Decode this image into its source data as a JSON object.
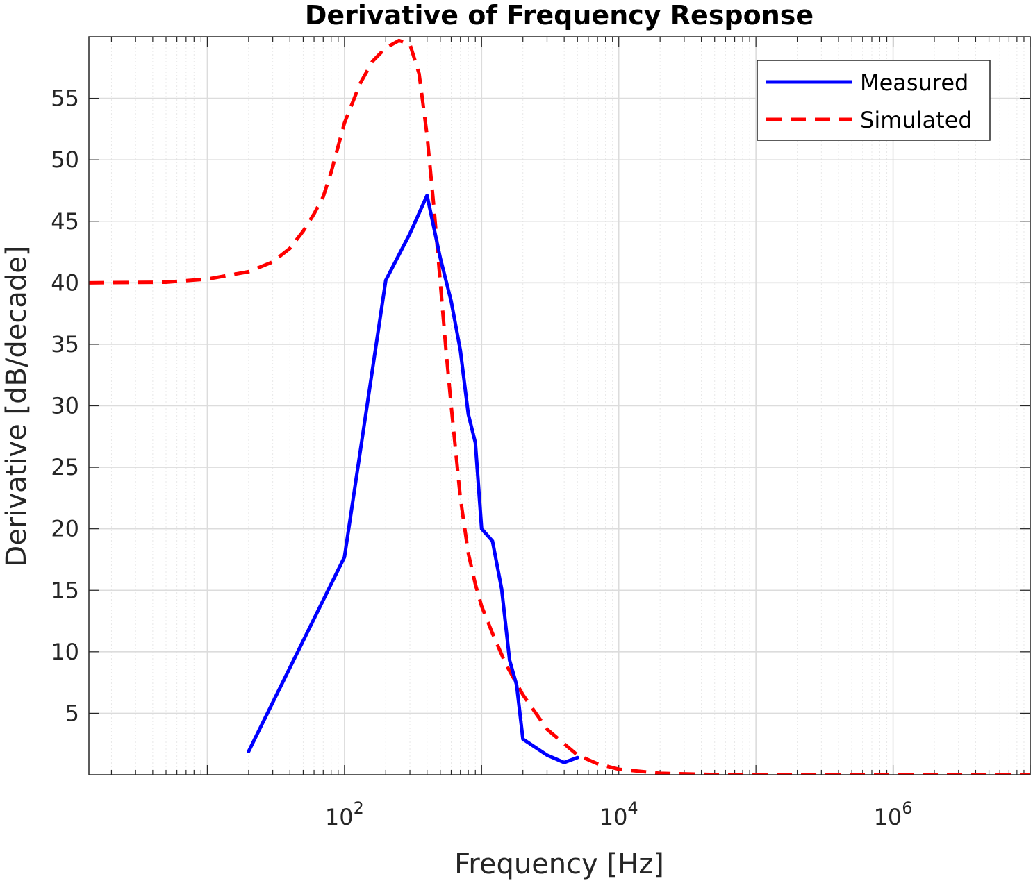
{
  "chart_data": {
    "type": "line",
    "title": "Derivative of Frequency Response",
    "xlabel": "Frequency [Hz]",
    "ylabel": "Derivative [dB/decade]",
    "xscale": "log",
    "xlim": [
      1.37,
      10000000
    ],
    "ylim": [
      0,
      60
    ],
    "grid": true,
    "minor_grid": true,
    "legend_position": "top-right",
    "x_tick_labels": [
      {
        "value": 100,
        "base": "10",
        "exp": "2"
      },
      {
        "value": 10000,
        "base": "10",
        "exp": "4"
      },
      {
        "value": 1000000,
        "base": "10",
        "exp": "6"
      }
    ],
    "y_ticks": [
      5,
      10,
      15,
      20,
      25,
      30,
      35,
      40,
      45,
      50,
      55
    ],
    "series": [
      {
        "name": "Measured",
        "color": "#0000ff",
        "style": "solid",
        "points": [
          [
            20,
            1.9
          ],
          [
            100,
            17.7
          ],
          [
            200,
            40.2
          ],
          [
            300,
            44.0
          ],
          [
            400,
            47.1
          ],
          [
            500,
            42.0
          ],
          [
            600,
            38.5
          ],
          [
            700,
            34.5
          ],
          [
            800,
            29.3
          ],
          [
            900,
            27.0
          ],
          [
            1000,
            20.0
          ],
          [
            1200,
            19.0
          ],
          [
            1400,
            15.1
          ],
          [
            1600,
            9.3
          ],
          [
            1800,
            7.3
          ],
          [
            2000,
            2.9
          ],
          [
            3000,
            1.6
          ],
          [
            4000,
            1.0
          ],
          [
            5000,
            1.4
          ]
        ]
      },
      {
        "name": "Simulated",
        "color": "#ff0000",
        "style": "dashed",
        "points": [
          [
            1.37,
            40.0
          ],
          [
            5,
            40.05
          ],
          [
            10,
            40.3
          ],
          [
            20,
            40.9
          ],
          [
            30,
            41.7
          ],
          [
            40,
            42.8
          ],
          [
            50,
            44.2
          ],
          [
            60,
            45.6
          ],
          [
            70,
            47.0
          ],
          [
            80,
            49.0
          ],
          [
            100,
            53.0
          ],
          [
            130,
            56.2
          ],
          [
            160,
            58.0
          ],
          [
            200,
            59.1
          ],
          [
            250,
            59.7
          ],
          [
            300,
            59.4
          ],
          [
            350,
            57.0
          ],
          [
            400,
            52.0
          ],
          [
            450,
            46.0
          ],
          [
            500,
            40.0
          ],
          [
            550,
            34.5
          ],
          [
            600,
            30.0
          ],
          [
            700,
            22.5
          ],
          [
            800,
            18.0
          ],
          [
            900,
            15.5
          ],
          [
            1000,
            13.7
          ],
          [
            1200,
            11.5
          ],
          [
            1500,
            9.0
          ],
          [
            2000,
            6.5
          ],
          [
            3000,
            3.7
          ],
          [
            5000,
            1.6
          ],
          [
            7000,
            0.9
          ],
          [
            10000,
            0.45
          ],
          [
            20000,
            0.12
          ],
          [
            50000,
            0.02
          ],
          [
            100000,
            0.0
          ],
          [
            10000000,
            0.0
          ]
        ]
      }
    ]
  }
}
